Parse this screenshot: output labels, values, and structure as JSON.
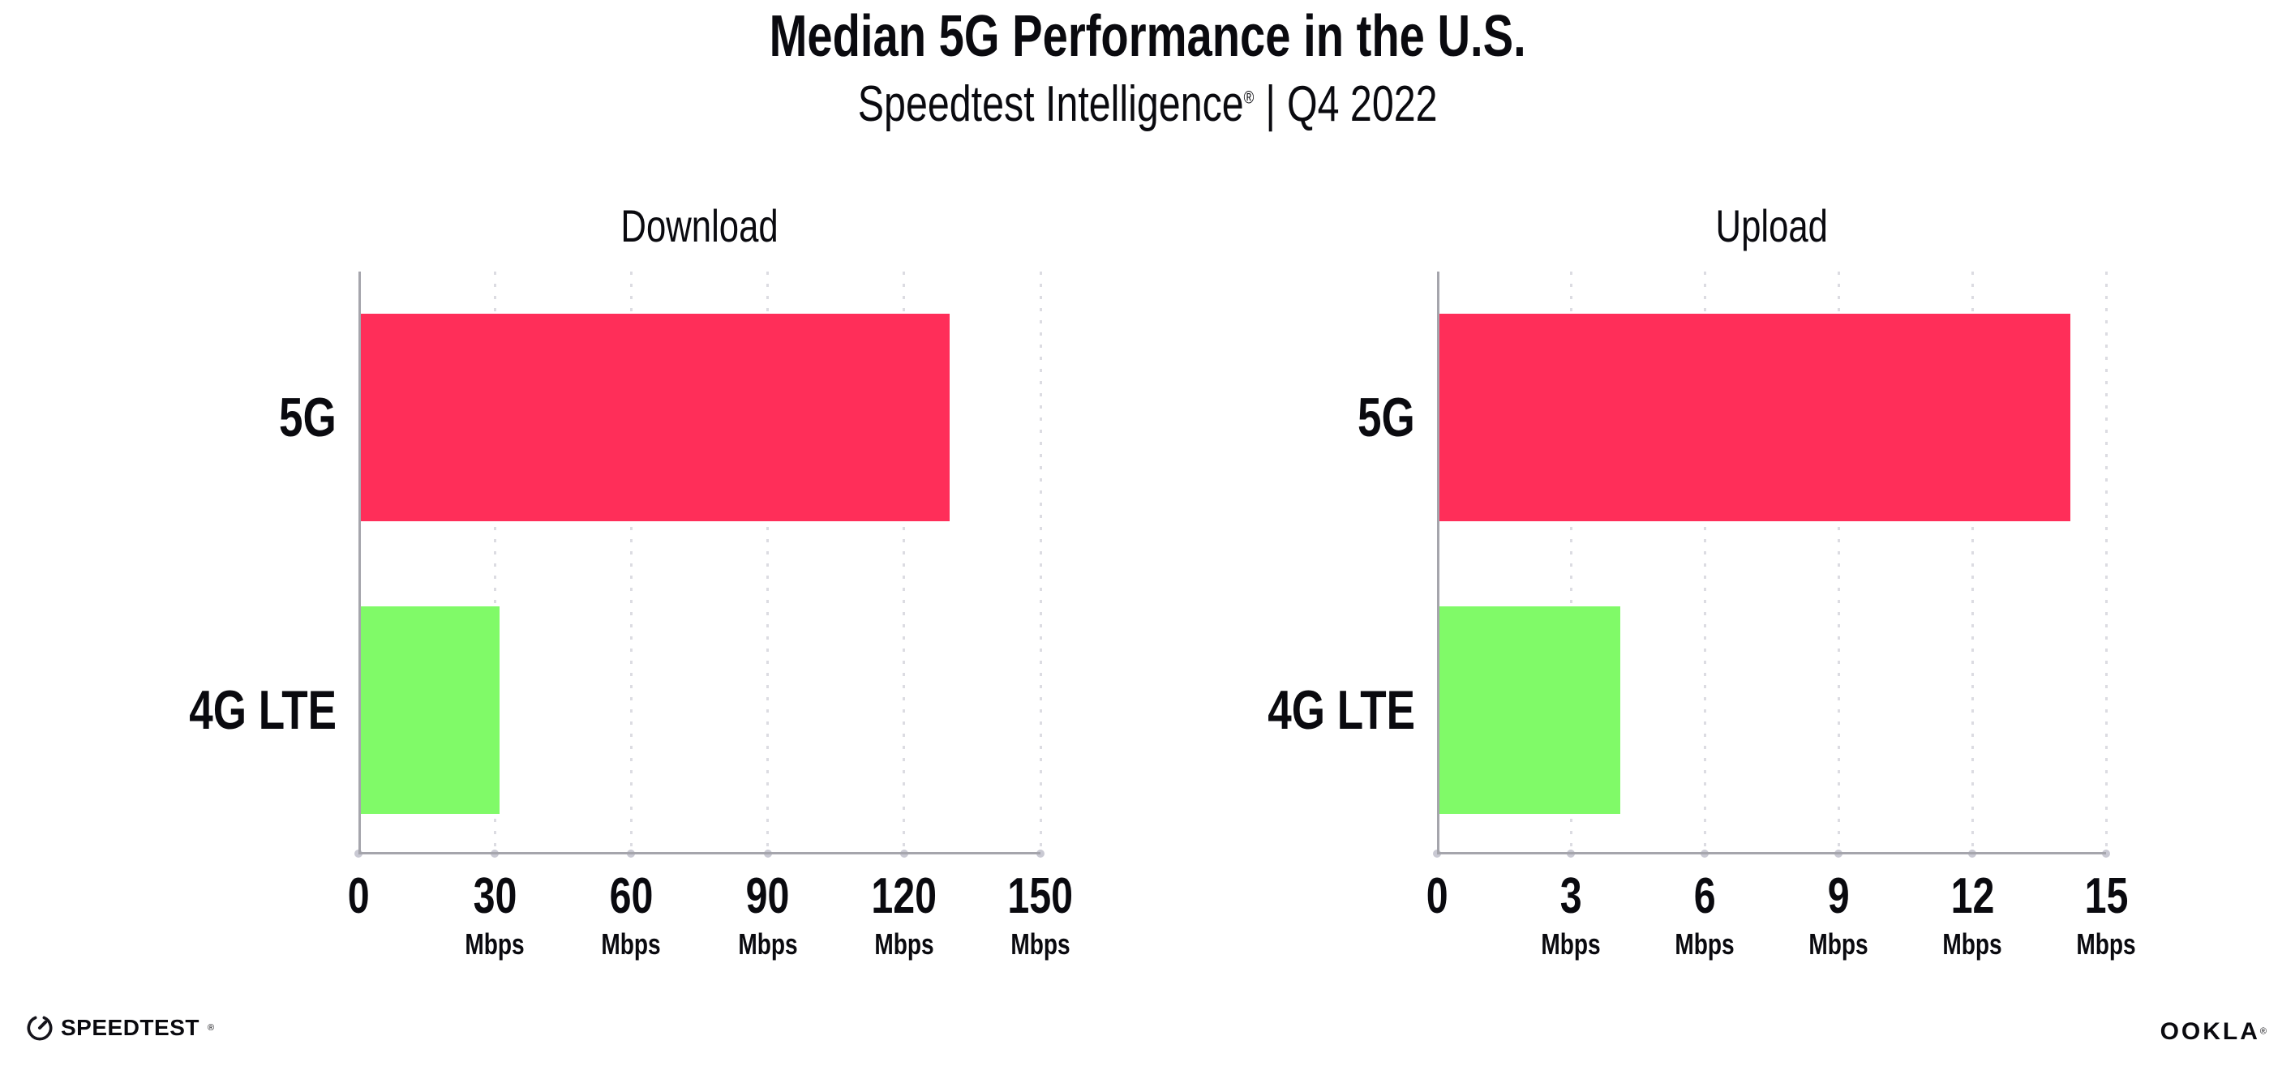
{
  "header": {
    "title": "Median 5G Performance in the U.S.",
    "subtitle": {
      "brand": "Speedtest Intelligence",
      "registered_mark": "®",
      "separator": "|",
      "period": "Q4 2022"
    }
  },
  "chart_data": [
    {
      "type": "bar",
      "orientation": "horizontal",
      "title": "Download",
      "categories": [
        "5G",
        "4G LTE"
      ],
      "values": [
        130,
        31
      ],
      "unit": "Mbps",
      "xticks": [
        0,
        30,
        60,
        90,
        120,
        150
      ],
      "xlim": [
        0,
        150
      ],
      "bar_colors": [
        "#FF2E59",
        "#80FA68"
      ],
      "grid": "vertical-dotted",
      "legend": "none"
    },
    {
      "type": "bar",
      "orientation": "horizontal",
      "title": "Upload",
      "categories": [
        "5G",
        "4G LTE"
      ],
      "values": [
        14.2,
        4.1
      ],
      "unit": "Mbps",
      "xticks": [
        0,
        3,
        6,
        9,
        12,
        15
      ],
      "xlim": [
        0,
        15
      ],
      "bar_colors": [
        "#FF2E59",
        "#80FA68"
      ],
      "grid": "vertical-dotted",
      "legend": "none"
    }
  ],
  "footer": {
    "speedtest": {
      "label": "SPEEDTEST",
      "mark": "®"
    },
    "ookla": {
      "label": "OOKLA",
      "mark": "®"
    }
  },
  "colors": {
    "bar_5g": "#FF2E59",
    "bar_4g_lte": "#80FA68",
    "axis": "#A5A5AC",
    "gridline": "#DCDCE2",
    "tick_dot": "#C9C9D3",
    "text": "#0A0A0F",
    "background": "#FFFFFF"
  }
}
